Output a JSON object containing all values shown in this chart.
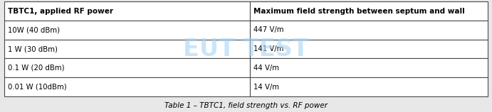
{
  "col1_header": "TBTC1, applied RF power",
  "col2_header": "Maximum field strength between septum and wall",
  "rows": [
    [
      "10W (40 dBm)",
      "447 V/m"
    ],
    [
      "1 W (30 dBm)",
      "141 V/m"
    ],
    [
      "0.1 W (20 dBm)",
      "44 V/m"
    ],
    [
      "0.01 W (10dBm)",
      "14 V/m"
    ]
  ],
  "caption": "Table 1 – TBTC1, field strength vs. RF power",
  "col_split": 0.508,
  "border_color": "#4a4a4a",
  "header_bg": "#ffffff",
  "row_bg": "#ffffff",
  "watermark_text": "EUT TEST",
  "watermark_color": "#a8d4f5",
  "watermark_alpha": 0.6,
  "fig_bg": "#e8e8e8",
  "header_fontsize": 7.5,
  "row_fontsize": 7.3,
  "caption_fontsize": 7.5,
  "figwidth": 6.91,
  "figheight": 1.58,
  "dpi": 100
}
